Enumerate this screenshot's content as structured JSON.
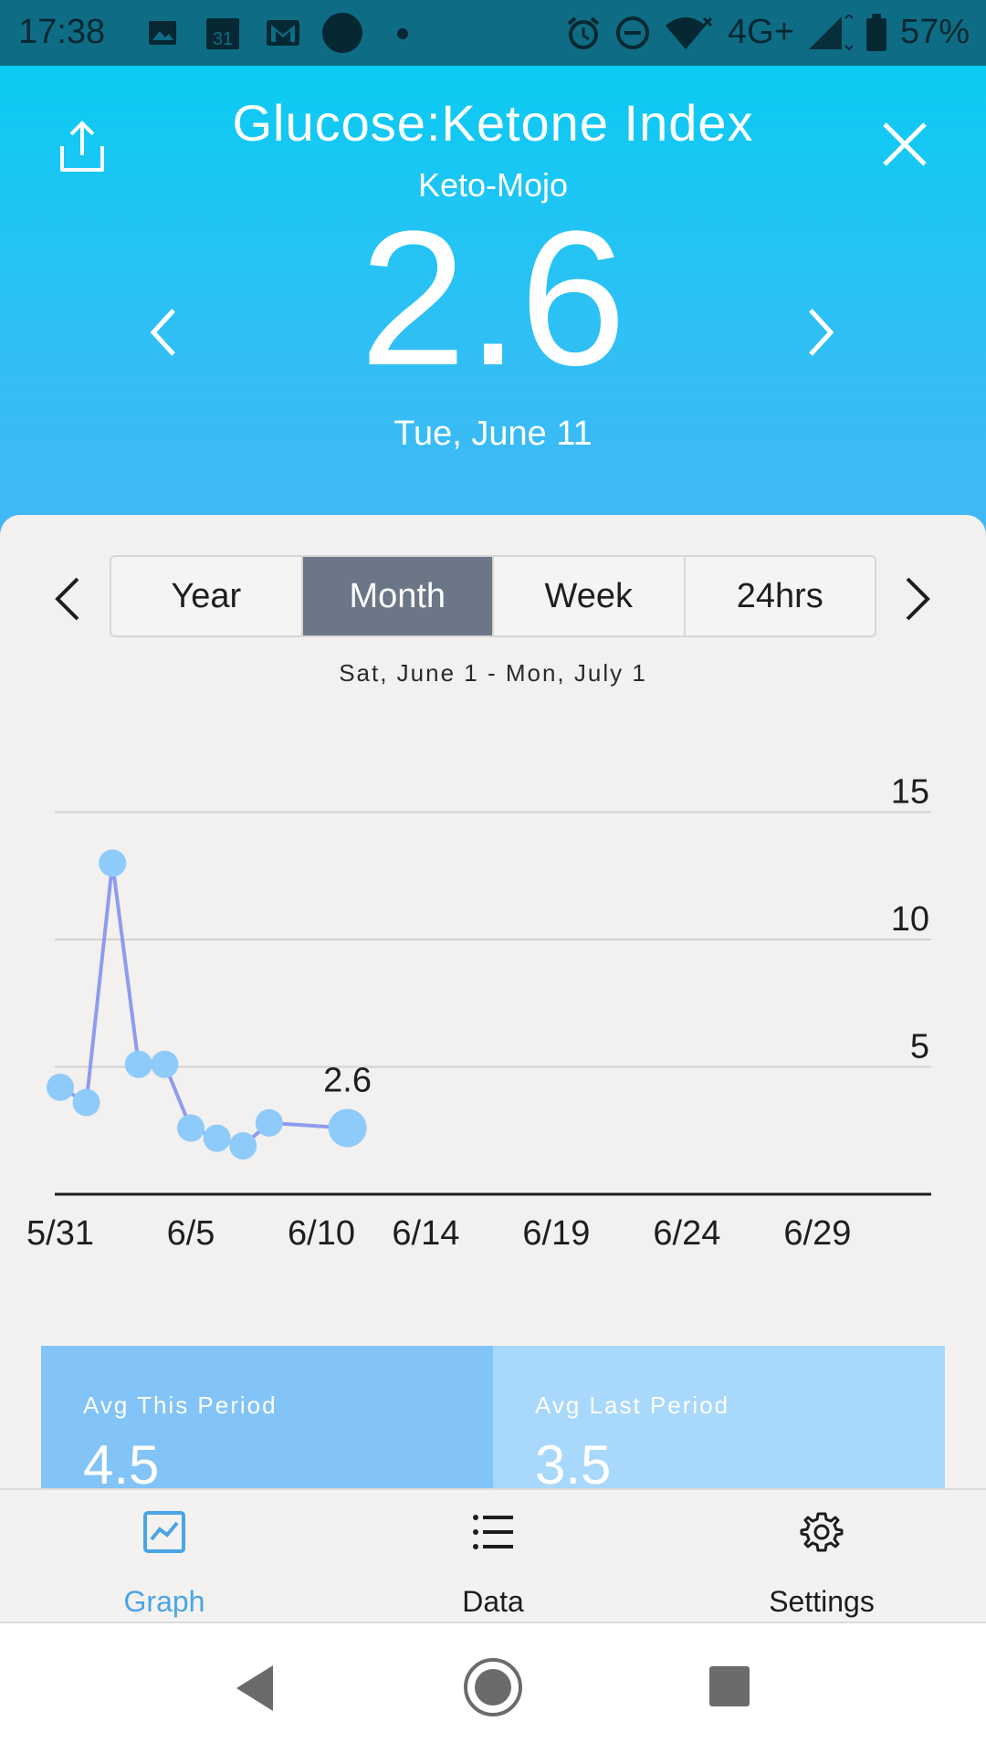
{
  "status_bar": {
    "time": "17:38",
    "network": "4G+",
    "battery": "57%",
    "left_icons": [
      "image-icon",
      "calendar-icon",
      "gmail-icon",
      "circle-icon",
      "dot-icon"
    ],
    "right_icons": [
      "alarm-icon",
      "do-not-disturb-icon",
      "wifi-icon",
      "signal-icon",
      "battery-icon"
    ],
    "calendar_day": "31"
  },
  "header": {
    "title": "Glucose:Ketone Index",
    "subtitle": "Keto-Mojo",
    "value": "2.6",
    "date": "Tue, June 11",
    "gradient_top": "#0bcbf3",
    "gradient_bottom": "#44b6f6"
  },
  "period_selector": {
    "options": [
      "Year",
      "Month",
      "Week",
      "24hrs"
    ],
    "selected": "Month",
    "range_label": "Sat, June 1 - Mon, July 1"
  },
  "chart_data": {
    "type": "line",
    "x_tick_labels": [
      "5/31",
      "6/5",
      "6/10",
      "6/14",
      "6/19",
      "6/24",
      "6/29"
    ],
    "y_tick_labels": [
      "5",
      "10",
      "15"
    ],
    "ylim": [
      0,
      15
    ],
    "grid": true,
    "series": [
      {
        "color": "#8f9bf0",
        "point_color": "#8ecbfa",
        "points": [
          {
            "x": "5/31",
            "y": 4.2
          },
          {
            "x": "6/1",
            "y": 3.6
          },
          {
            "x": "6/2",
            "y": 13.0
          },
          {
            "x": "6/3",
            "y": 5.1
          },
          {
            "x": "6/4",
            "y": 5.1
          },
          {
            "x": "6/5",
            "y": 2.6
          },
          {
            "x": "6/6",
            "y": 2.2
          },
          {
            "x": "6/7",
            "y": 1.9
          },
          {
            "x": "6/8",
            "y": 2.8
          },
          {
            "x": "6/11",
            "y": 2.6
          }
        ]
      }
    ],
    "highlight_label": "2.6"
  },
  "averages": {
    "this_period_label": "Avg This Period",
    "this_period_value": "4.5",
    "last_period_label": "Avg Last Period",
    "last_period_value": "3.5"
  },
  "bottom_nav": {
    "items": [
      {
        "label": "Graph",
        "icon": "graph-icon",
        "active": true
      },
      {
        "label": "Data",
        "icon": "list-icon",
        "active": false
      },
      {
        "label": "Settings",
        "icon": "gear-icon",
        "active": false
      }
    ],
    "active_color": "#4aa5e6"
  }
}
